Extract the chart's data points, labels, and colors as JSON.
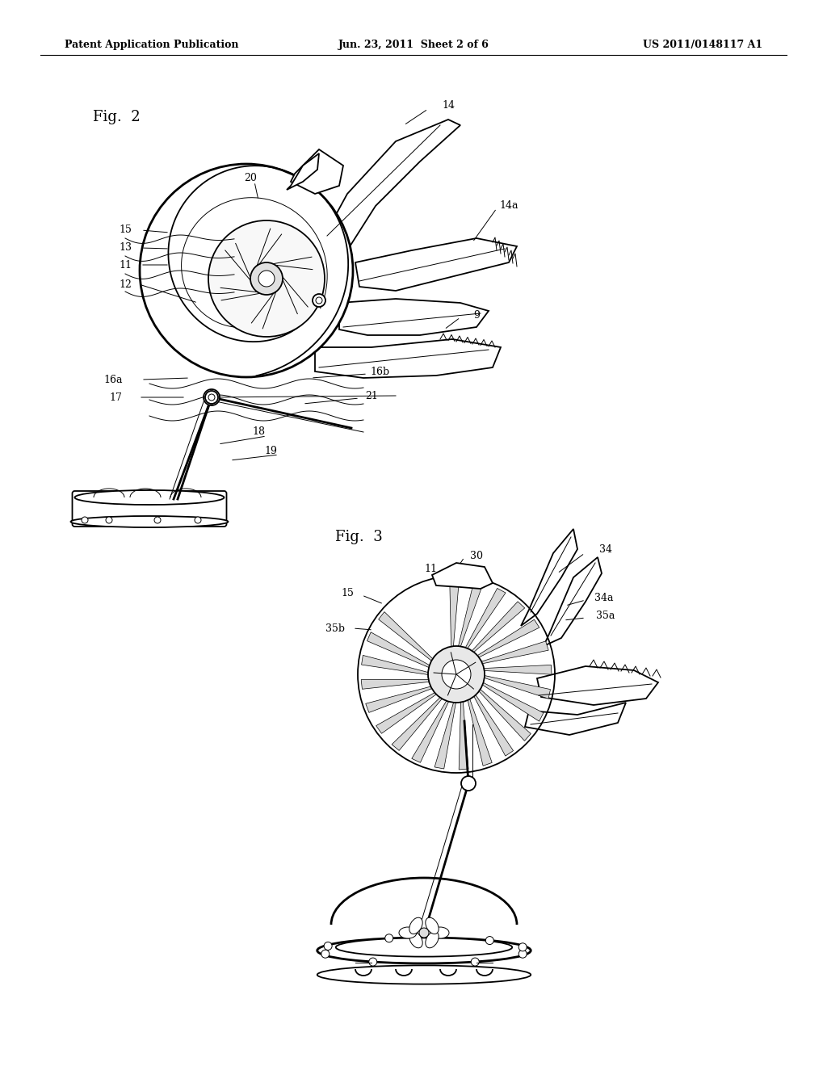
{
  "bg_color": "#ffffff",
  "line_color": "#000000",
  "header_left": "Patent Application Publication",
  "header_center": "Jun. 23, 2011  Sheet 2 of 6",
  "header_right": "US 2011/0148117 A1",
  "fig2_label": "Fig.  2",
  "fig3_label": "Fig.  3",
  "lw_main": 1.3,
  "lw_thin": 0.7,
  "lw_thick": 2.0
}
